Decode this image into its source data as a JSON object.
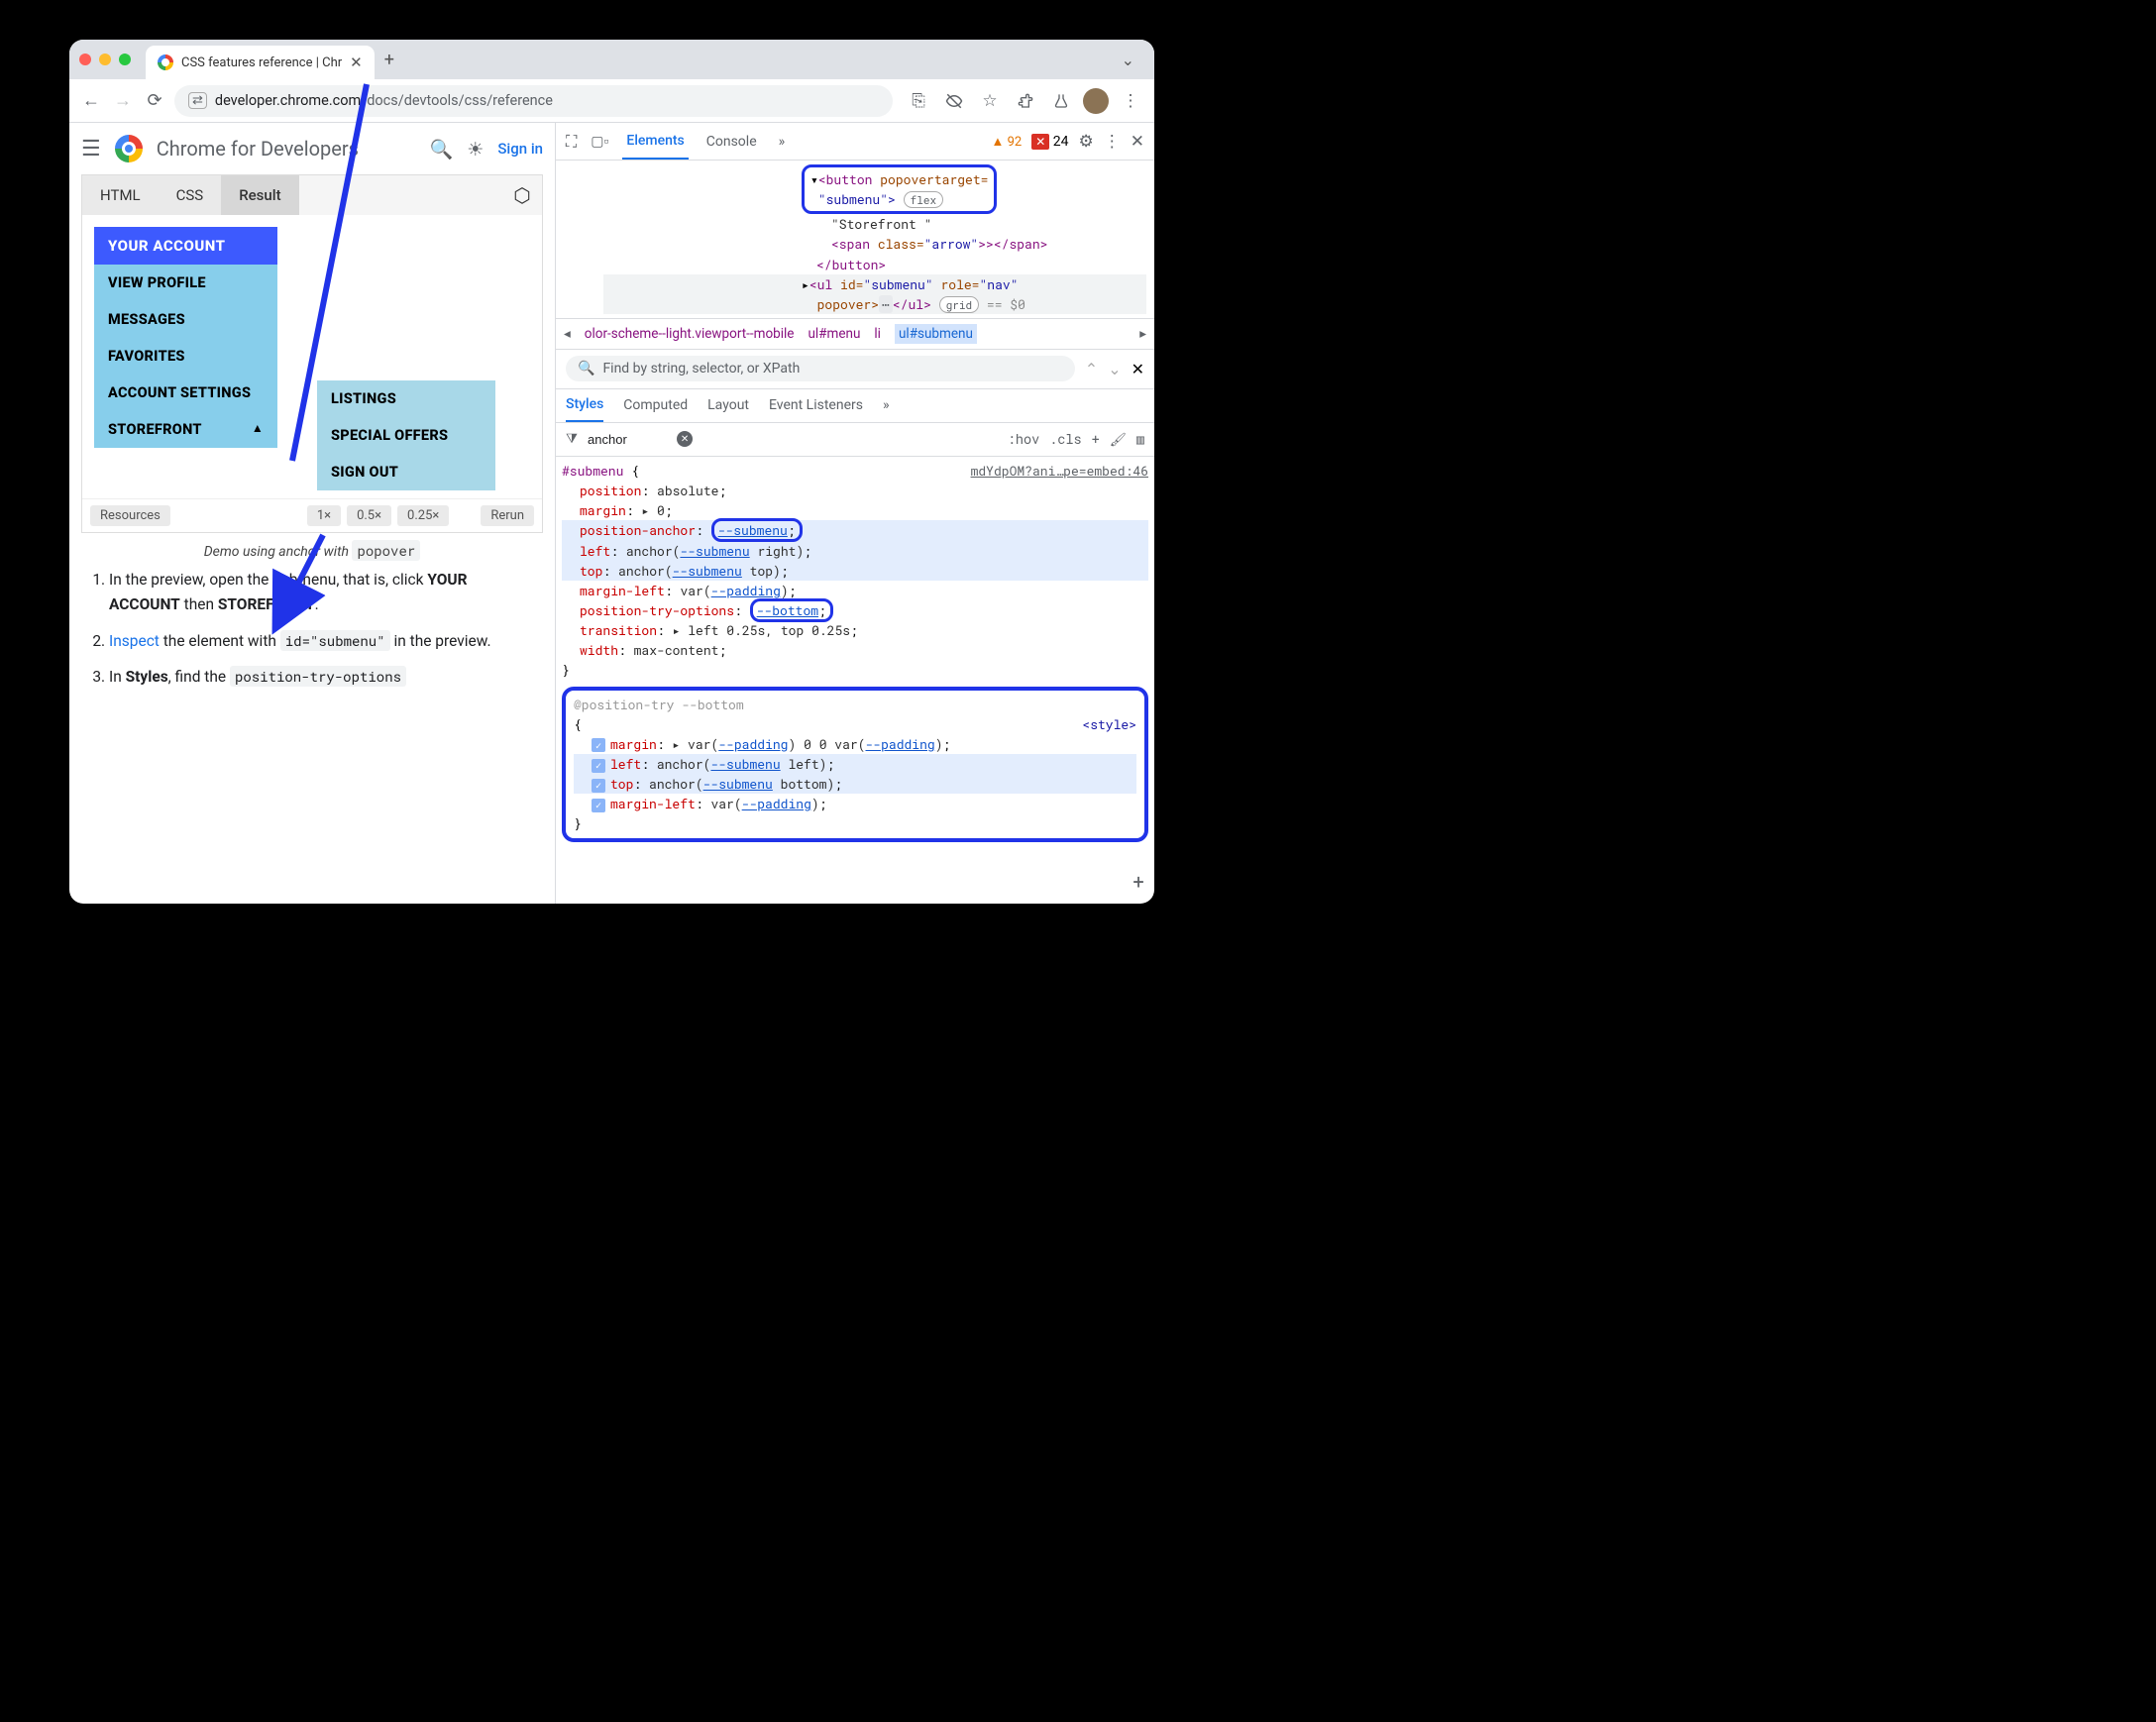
{
  "browser": {
    "tab_title": "CSS features reference | Chr",
    "url_host": "developer.chrome.com",
    "url_path": "/docs/devtools/css/reference"
  },
  "page_header": {
    "brand": "Chrome for Developers",
    "signin": "Sign in"
  },
  "codebox": {
    "tabs": {
      "html": "HTML",
      "css": "CSS",
      "result": "Result"
    },
    "menu_header": "YOUR ACCOUNT",
    "menu_items": [
      "VIEW PROFILE",
      "MESSAGES",
      "FAVORITES",
      "ACCOUNT SETTINGS",
      "STOREFRONT"
    ],
    "submenu_items": [
      "LISTINGS",
      "SPECIAL OFFERS",
      "SIGN OUT"
    ],
    "footer": {
      "resources": "Resources",
      "z1": "1×",
      "z05": "0.5×",
      "z025": "0.25×",
      "rerun": "Rerun"
    },
    "caption_pre": "Demo using anchor with ",
    "caption_code": "popover"
  },
  "steps": {
    "s1a": "In the preview, open the submenu, that is, click ",
    "s1b": "YOUR ACCOUNT",
    "s1c": " then ",
    "s1d": "STOREFRONT",
    "s2a": "Inspect",
    "s2b": " the element with ",
    "s2code": "id=\"submenu\"",
    "s2c": " in the preview.",
    "s3a": "In ",
    "s3b": "Styles",
    "s3c": ", find the ",
    "s3code": "position-try-options"
  },
  "devtools": {
    "tabs": {
      "elements": "Elements",
      "console": "Console"
    },
    "warn_count": "92",
    "err_count": "24"
  },
  "dom": {
    "line1a": "<button",
    "line1b": " popovertarget=",
    "line2": "\"submenu\">",
    "flex_badge": "flex",
    "line3": "\"Storefront \"",
    "line4a": "<span",
    "line4b": " class=",
    "line4c": "\"arrow\"",
    "line4d": ">></span>",
    "line5": "</button>",
    "line6a": "<ul",
    "line6b": " id=",
    "line6c": "\"submenu\"",
    "line6d": " role=",
    "line6e": "\"nav\"",
    "line7a": "popover>",
    "line7b": "</ul>",
    "grid_badge": "grid",
    "eq0": " == $0"
  },
  "crumbs": {
    "c1": "olor-scheme--light.viewport--mobile",
    "c2": "ul#menu",
    "c3": "li",
    "c4": "ul#submenu"
  },
  "search_placeholder": "Find by string, selector, or XPath",
  "styles_tabs": {
    "styles": "Styles",
    "computed": "Computed",
    "layout": "Layout",
    "event": "Event Listeners"
  },
  "filter": {
    "value": "anchor",
    "hov": ":hov",
    "cls": ".cls"
  },
  "css": {
    "source": "mdYdpOM?ani…pe=embed:46",
    "selector": "#submenu",
    "rules": [
      {
        "prop": "position",
        "val": "absolute"
      },
      {
        "prop": "margin",
        "val": "▸ 0"
      },
      {
        "prop": "position-anchor",
        "val": "--submenu",
        "callout": true,
        "hl": true
      },
      {
        "prop": "left",
        "val_pre": "anchor(",
        "var": "--submenu",
        "val_post": " right)",
        "hl": true
      },
      {
        "prop": "top",
        "val_pre": "anchor(",
        "var": "--submenu",
        "val_post": " top)",
        "hl": true
      },
      {
        "prop": "margin-left",
        "val_pre": "var(",
        "var": "--padding",
        "val_post": ")"
      },
      {
        "prop": "position-try-options",
        "val": "--bottom",
        "callout": true
      },
      {
        "prop": "transition",
        "val": "▸ left 0.25s, top 0.25s"
      },
      {
        "prop": "width",
        "val": "max-content"
      }
    ],
    "try_header": "@position-try --bottom",
    "style_tag": "<style>",
    "try_rules": [
      {
        "prop": "margin",
        "pre": "▸ var(",
        "v1": "--padding",
        "mid": ") 0 0 var(",
        "v2": "--padding",
        "post": ")"
      },
      {
        "prop": "left",
        "pre": "anchor(",
        "v1": "--submenu",
        "post": " left)",
        "hl": true
      },
      {
        "prop": "top",
        "pre": "anchor(",
        "v1": "--submenu",
        "post": " bottom)",
        "hl": true
      },
      {
        "prop": "margin-left",
        "pre": "var(",
        "v1": "--padding",
        "post": ")"
      }
    ]
  },
  "colors": {
    "callout": "#2033e8",
    "menu_header_bg": "#3d5afe",
    "menu_items_bg": "#87ceeb",
    "submenu_bg": "#a8d8e8"
  }
}
